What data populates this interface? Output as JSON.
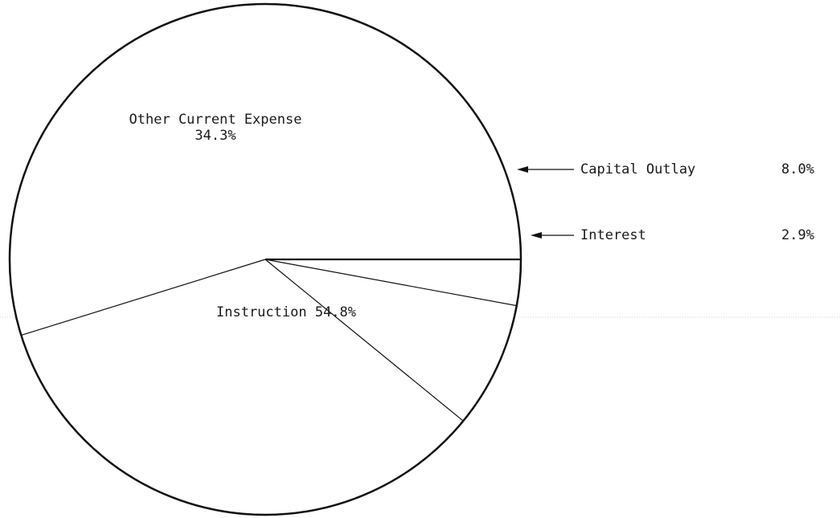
{
  "chart_data": {
    "type": "pie",
    "title": "",
    "slices": [
      {
        "label": "Instruction",
        "value": 54.8,
        "display": "Instruction 54.8%"
      },
      {
        "label": "Other Current Expense",
        "value": 34.3,
        "display": "34.3%"
      },
      {
        "label": "Capital Outlay",
        "value": 8.0,
        "display": "8.0%"
      },
      {
        "label": "Interest",
        "value": 2.9,
        "display": "2.9%"
      }
    ],
    "start_angle_deg": 0,
    "direction": "counterclockwise",
    "legend": "none",
    "callouts": [
      "Capital Outlay",
      "Interest"
    ]
  }
}
